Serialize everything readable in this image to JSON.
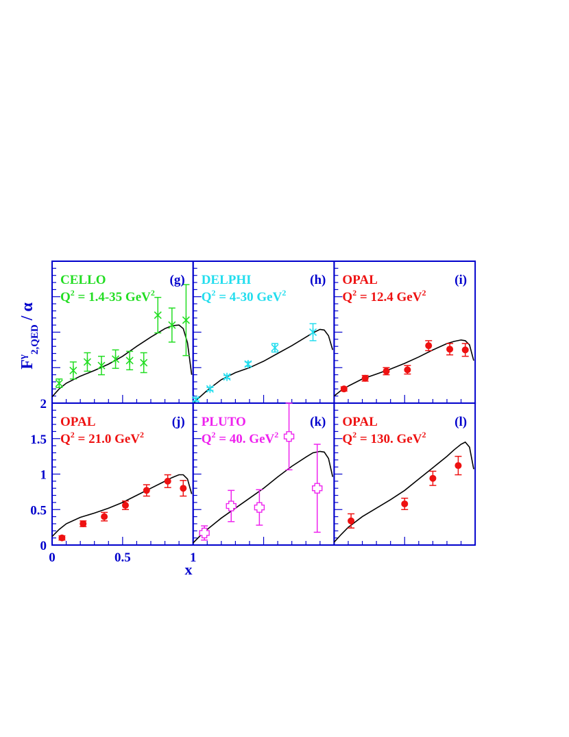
{
  "figure": {
    "ylabel_main": "F",
    "ylabel_sup": "γ",
    "ylabel_sub": "2,QED",
    "ylabel_tail": " / α",
    "xlabel": "x",
    "frame_color": "#0000cc",
    "curve_color": "#000000",
    "x_ticks": [
      {
        "label": "0",
        "value": 0
      },
      {
        "label": "0.5",
        "value": 0.5
      },
      {
        "label": "1",
        "value": 1
      }
    ],
    "y_ticks": [
      {
        "label": "0",
        "value": 0
      },
      {
        "label": "0.5",
        "value": 0.5
      },
      {
        "label": "1",
        "value": 1
      },
      {
        "label": "1.5",
        "value": 1.5
      },
      {
        "label": "2",
        "value": 2
      }
    ]
  },
  "chart_data": [
    {
      "type": "scatter",
      "panel": "(g)",
      "experiment": "CELLO",
      "q2_label": "Q",
      "q2_sup": "2",
      "q2_value": " = 1.4-35 GeV",
      "q2_unit_sup": "2",
      "color": "#22dd22",
      "marker": "star",
      "xlim": [
        0,
        1
      ],
      "ylim": [
        0,
        2
      ],
      "x": [
        0.05,
        0.15,
        0.25,
        0.35,
        0.45,
        0.55,
        0.65,
        0.75,
        0.85,
        0.95
      ],
      "y": [
        0.28,
        0.46,
        0.58,
        0.53,
        0.62,
        0.6,
        0.57,
        1.24,
        1.1,
        1.17
      ],
      "yerr": [
        0.06,
        0.12,
        0.13,
        0.13,
        0.13,
        0.13,
        0.14,
        0.25,
        0.24,
        0.5
      ],
      "curve_x": [
        0.0,
        0.05,
        0.1,
        0.2,
        0.3,
        0.4,
        0.5,
        0.6,
        0.7,
        0.8,
        0.85,
        0.9,
        0.93,
        0.96,
        0.99
      ],
      "curve_y": [
        0.09,
        0.2,
        0.28,
        0.38,
        0.46,
        0.55,
        0.66,
        0.8,
        0.93,
        1.05,
        1.09,
        1.1,
        1.05,
        0.85,
        0.4
      ]
    },
    {
      "type": "scatter",
      "panel": "(h)",
      "experiment": "DELPHI",
      "q2_label": "Q",
      "q2_sup": "2",
      "q2_value": " = 4-30 GeV",
      "q2_unit_sup": "2",
      "color": "#22ddee",
      "marker": "star",
      "xlim": [
        0,
        1
      ],
      "ylim": [
        0,
        2
      ],
      "x": [
        0.02,
        0.12,
        0.24,
        0.39,
        0.58,
        0.85
      ],
      "y": [
        0.05,
        0.2,
        0.37,
        0.55,
        0.78,
        1.0
      ],
      "yerr": [
        0.02,
        0.02,
        0.02,
        0.03,
        0.06,
        0.12
      ],
      "curve_x": [
        0.0,
        0.05,
        0.1,
        0.2,
        0.3,
        0.4,
        0.5,
        0.6,
        0.7,
        0.8,
        0.85,
        0.9,
        0.93,
        0.96,
        0.99
      ],
      "curve_y": [
        0.0,
        0.09,
        0.18,
        0.33,
        0.43,
        0.5,
        0.59,
        0.7,
        0.81,
        0.93,
        0.99,
        1.04,
        1.03,
        0.95,
        0.75
      ]
    },
    {
      "type": "scatter",
      "panel": "(i)",
      "experiment": "OPAL",
      "q2_label": "Q",
      "q2_sup": "2",
      "q2_value": " = 12.4 GeV",
      "q2_unit_sup": "2",
      "color": "#ee1111",
      "marker": "circle",
      "xlim": [
        0,
        1
      ],
      "ylim": [
        0,
        2
      ],
      "x": [
        0.07,
        0.22,
        0.37,
        0.52,
        0.67,
        0.82,
        0.93
      ],
      "y": [
        0.2,
        0.35,
        0.45,
        0.47,
        0.81,
        0.76,
        0.75
      ],
      "yerr": [
        0.03,
        0.04,
        0.05,
        0.06,
        0.07,
        0.08,
        0.09
      ],
      "curve_x": [
        0.0,
        0.05,
        0.1,
        0.2,
        0.3,
        0.4,
        0.5,
        0.6,
        0.7,
        0.8,
        0.85,
        0.9,
        0.93,
        0.96,
        0.99
      ],
      "curve_y": [
        0.1,
        0.18,
        0.24,
        0.34,
        0.41,
        0.48,
        0.56,
        0.65,
        0.75,
        0.84,
        0.87,
        0.89,
        0.88,
        0.82,
        0.6
      ]
    },
    {
      "type": "scatter",
      "panel": "(j)",
      "experiment": "OPAL",
      "q2_label": "Q",
      "q2_sup": "2",
      "q2_value": " = 21.0 GeV",
      "q2_unit_sup": "2",
      "color": "#ee1111",
      "marker": "circle",
      "xlim": [
        0,
        1
      ],
      "ylim": [
        0,
        2
      ],
      "x": [
        0.07,
        0.22,
        0.37,
        0.52,
        0.67,
        0.82,
        0.93
      ],
      "y": [
        0.1,
        0.3,
        0.4,
        0.56,
        0.77,
        0.9,
        0.8
      ],
      "yerr": [
        0.03,
        0.04,
        0.06,
        0.06,
        0.08,
        0.09,
        0.11
      ],
      "curve_x": [
        0.0,
        0.05,
        0.1,
        0.2,
        0.3,
        0.4,
        0.5,
        0.6,
        0.7,
        0.8,
        0.85,
        0.9,
        0.93,
        0.96,
        0.99
      ],
      "curve_y": [
        0.12,
        0.22,
        0.3,
        0.39,
        0.45,
        0.52,
        0.6,
        0.7,
        0.8,
        0.9,
        0.95,
        0.99,
        0.99,
        0.93,
        0.72
      ]
    },
    {
      "type": "scatter",
      "panel": "(k)",
      "experiment": "PLUTO",
      "q2_label": "Q",
      "q2_sup": "2",
      "q2_value": " = 40. GeV",
      "q2_unit_sup": "2",
      "color": "#ee22ee",
      "marker": "open-cross",
      "xlim": [
        0,
        1
      ],
      "ylim": [
        0,
        2
      ],
      "x": [
        0.08,
        0.27,
        0.47,
        0.68,
        0.88
      ],
      "y": [
        0.17,
        0.55,
        0.53,
        1.53,
        0.8
      ],
      "yerr": [
        0.1,
        0.22,
        0.25,
        0.47,
        0.62
      ],
      "curve_x": [
        0.0,
        0.05,
        0.1,
        0.2,
        0.3,
        0.4,
        0.5,
        0.6,
        0.7,
        0.8,
        0.85,
        0.9,
        0.93,
        0.96,
        0.99
      ],
      "curve_y": [
        0.03,
        0.13,
        0.22,
        0.38,
        0.52,
        0.66,
        0.8,
        0.96,
        1.11,
        1.24,
        1.3,
        1.32,
        1.31,
        1.22,
        0.96
      ]
    },
    {
      "type": "scatter",
      "panel": "(l)",
      "experiment": "OPAL",
      "q2_label": "Q",
      "q2_sup": "2",
      "q2_value": " = 130. GeV",
      "q2_unit_sup": "2",
      "color": "#ee1111",
      "marker": "circle",
      "xlim": [
        0,
        1
      ],
      "ylim": [
        0,
        2
      ],
      "x": [
        0.12,
        0.5,
        0.7,
        0.88
      ],
      "y": [
        0.34,
        0.58,
        0.94,
        1.12
      ],
      "yerr": [
        0.1,
        0.08,
        0.1,
        0.13
      ],
      "curve_x": [
        0.0,
        0.05,
        0.1,
        0.2,
        0.3,
        0.4,
        0.5,
        0.6,
        0.7,
        0.8,
        0.85,
        0.9,
        0.93,
        0.96,
        0.99
      ],
      "curve_y": [
        0.04,
        0.15,
        0.25,
        0.4,
        0.52,
        0.64,
        0.77,
        0.93,
        1.09,
        1.25,
        1.34,
        1.42,
        1.45,
        1.38,
        1.07
      ]
    }
  ]
}
